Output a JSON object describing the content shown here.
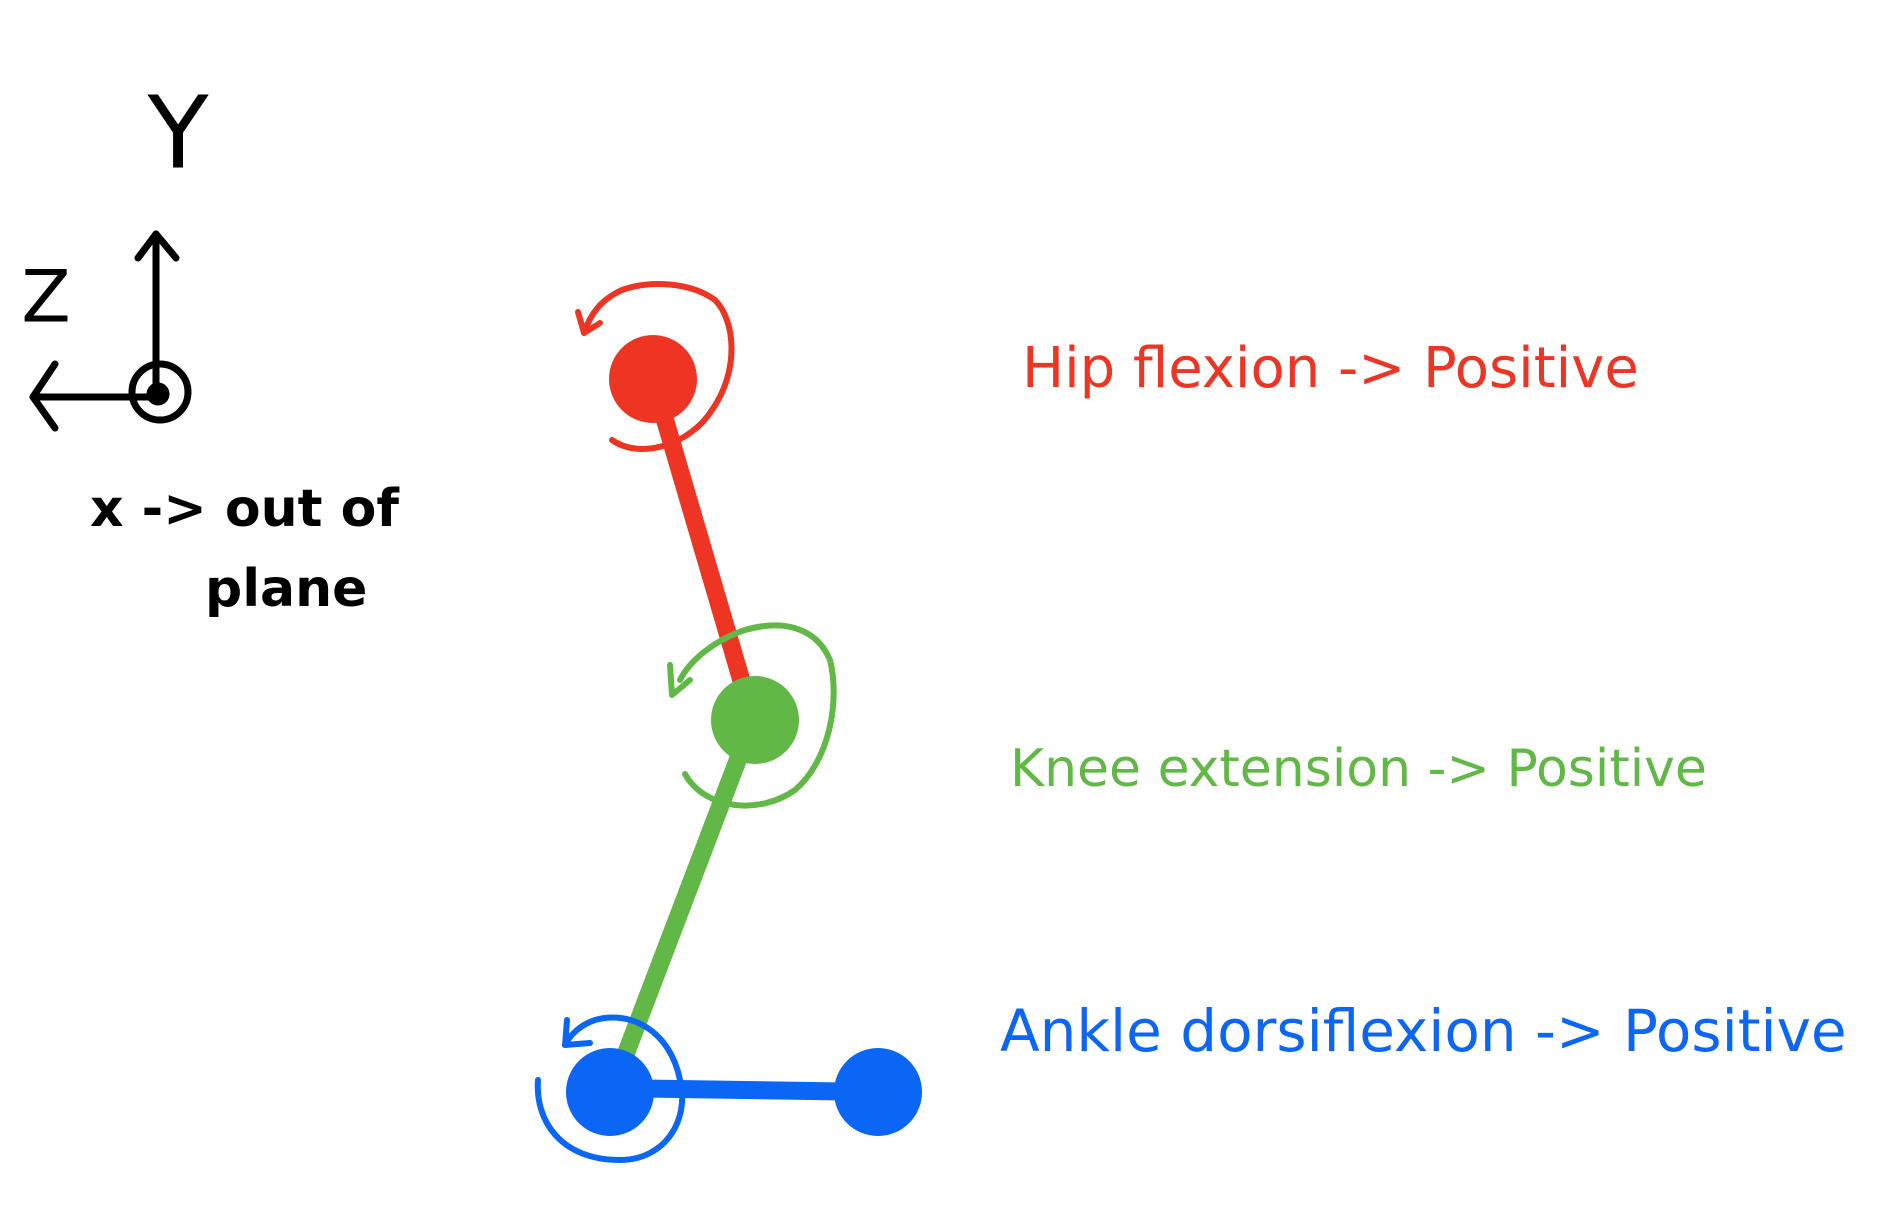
{
  "axes": {
    "y_label": "Y",
    "z_label": "Z",
    "x_note": [
      "x -> out of",
      "plane"
    ]
  },
  "joints": [
    {
      "label": "Hip flexion -> Positive",
      "color": "#ee3524"
    },
    {
      "label": "Knee extension -> Positive",
      "color": "#62b846"
    },
    {
      "label": "Ankle dorsiflexion -> Positive",
      "color": "#0b66f5"
    }
  ]
}
